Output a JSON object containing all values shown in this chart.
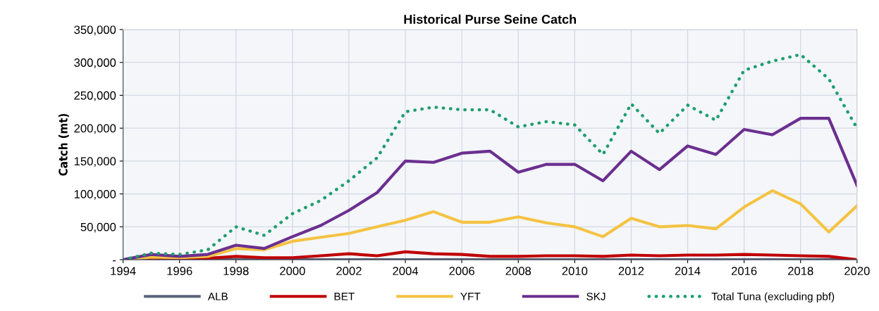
{
  "chart_data": {
    "type": "line",
    "title": "Historical Purse Seine Catch",
    "ylabel": "Catch (mt)",
    "x": [
      1994,
      1995,
      1996,
      1997,
      1998,
      1999,
      2000,
      2001,
      2002,
      2003,
      2004,
      2005,
      2006,
      2007,
      2008,
      2009,
      2010,
      2011,
      2012,
      2013,
      2014,
      2015,
      2016,
      2017,
      2018,
      2019,
      2020
    ],
    "series": [
      {
        "name": "ALB",
        "color": "#5a6478",
        "values": [
          0,
          0,
          0,
          0,
          0,
          0,
          0,
          0,
          0,
          0,
          0,
          0,
          0,
          0,
          0,
          0,
          0,
          0,
          0,
          0,
          0,
          0,
          0,
          0,
          0,
          0,
          0
        ]
      },
      {
        "name": "BET",
        "color": "#c00000",
        "values": [
          0,
          2000,
          1000,
          2000,
          5000,
          3000,
          3000,
          6000,
          9000,
          6000,
          12000,
          9000,
          8000,
          5000,
          5000,
          6000,
          6000,
          5000,
          7000,
          6000,
          7000,
          7000,
          8000,
          7000,
          6000,
          5000,
          0
        ]
      },
      {
        "name": "YFT",
        "color": "#f5c342",
        "values": [
          0,
          4000,
          3000,
          5000,
          17000,
          15000,
          28000,
          34000,
          40000,
          50000,
          60000,
          73000,
          57000,
          57000,
          65000,
          56000,
          50000,
          35000,
          63000,
          50000,
          52000,
          47000,
          80000,
          105000,
          85000,
          42000,
          82000
        ]
      },
      {
        "name": "SKJ",
        "color": "#6b2f8f",
        "values": [
          0,
          8000,
          5000,
          8000,
          22000,
          17000,
          35000,
          52000,
          75000,
          102000,
          150000,
          148000,
          162000,
          165000,
          133000,
          145000,
          145000,
          120000,
          165000,
          137000,
          173000,
          160000,
          198000,
          190000,
          215000,
          215000,
          113000
        ]
      },
      {
        "name": "Total Tuna (excluding pbf)",
        "color": "#1f9e6e",
        "line_style": "dotted",
        "values": [
          0,
          10000,
          8000,
          15000,
          50000,
          37000,
          70000,
          90000,
          120000,
          155000,
          225000,
          232000,
          228000,
          228000,
          202000,
          210000,
          205000,
          160000,
          237000,
          192000,
          235000,
          212000,
          288000,
          302000,
          312000,
          275000,
          200000
        ]
      }
    ],
    "xlim": [
      1994,
      2020
    ],
    "xticks": [
      1994,
      1996,
      1998,
      2000,
      2002,
      2004,
      2006,
      2008,
      2010,
      2012,
      2014,
      2016,
      2018,
      2020
    ],
    "ylim": [
      0,
      350000
    ],
    "yticks": [
      {
        "value": 0,
        "label": "-"
      },
      {
        "value": 50000,
        "label": "50,000"
      },
      {
        "value": 100000,
        "label": "100,000"
      },
      {
        "value": 150000,
        "label": "150,000"
      },
      {
        "value": 200000,
        "label": "200,000"
      },
      {
        "value": 250000,
        "label": "250,000"
      },
      {
        "value": 300000,
        "label": "300,000"
      },
      {
        "value": 350000,
        "label": "350,000"
      }
    ],
    "grid": true,
    "legend": "bottom",
    "line_style": "solid",
    "marker": "none"
  }
}
